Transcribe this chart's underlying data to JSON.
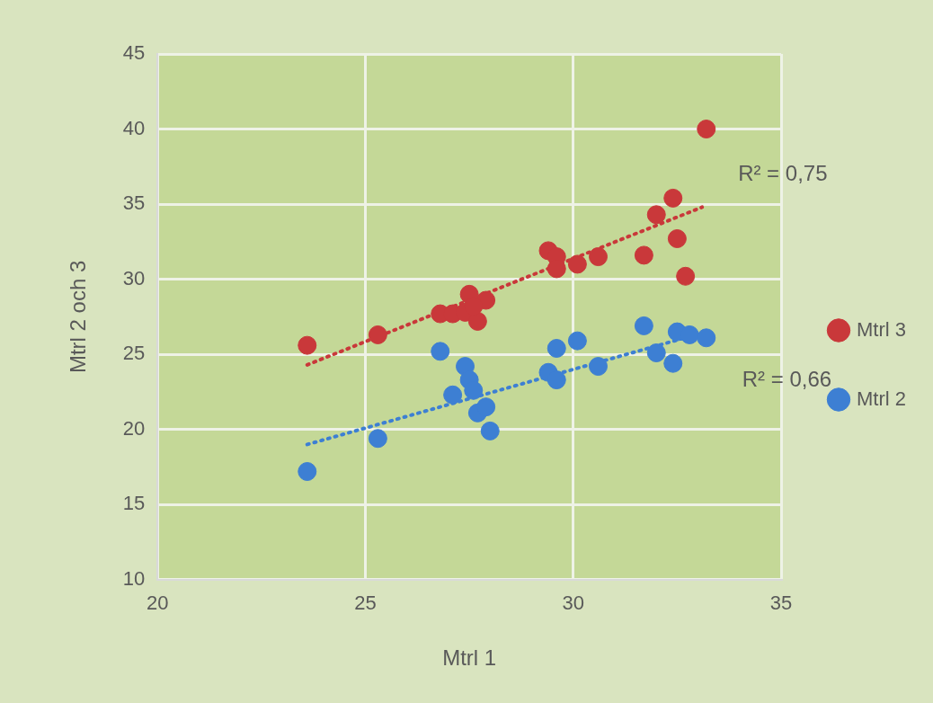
{
  "chart_data": {
    "type": "scatter",
    "xlabel": "Mtrl 1",
    "ylabel": "Mtrl 2 och 3",
    "xlim": [
      20,
      35
    ],
    "xticks": [
      20,
      25,
      30,
      35
    ],
    "ylim": [
      10,
      45
    ],
    "yticks": [
      10,
      15,
      20,
      25,
      30,
      35,
      40,
      45
    ],
    "grid": true,
    "legend": "right",
    "marker": "circle",
    "annotations": [
      "R² = 0,75",
      "R² = 0,66"
    ],
    "series": [
      {
        "name": "Mtrl 3",
        "color": "#c9383a",
        "x": [
          23.6,
          25.3,
          26.8,
          27.1,
          27.5,
          27.4,
          27.7,
          27.9,
          27.6,
          29.4,
          29.6,
          29.6,
          30.1,
          30.6,
          31.7,
          32.0,
          32.4,
          32.5,
          32.7,
          33.2
        ],
        "values": [
          25.6,
          26.3,
          27.7,
          27.7,
          29.0,
          27.8,
          27.2,
          28.6,
          28.2,
          31.9,
          31.5,
          30.7,
          31.0,
          31.5,
          31.6,
          34.3,
          35.4,
          32.7,
          30.2,
          40.0
        ]
      },
      {
        "name": "Mtrl 2",
        "color": "#3d7fd3",
        "x": [
          23.6,
          25.3,
          26.8,
          27.1,
          27.4,
          27.5,
          27.6,
          27.7,
          27.9,
          28.0,
          29.4,
          29.6,
          29.6,
          30.1,
          30.6,
          31.7,
          32.0,
          32.4,
          32.5,
          32.8,
          33.2
        ],
        "values": [
          17.2,
          19.4,
          25.2,
          22.3,
          24.2,
          23.3,
          22.6,
          21.1,
          21.5,
          19.9,
          23.8,
          23.3,
          25.4,
          25.9,
          24.2,
          26.9,
          25.1,
          24.4,
          26.5,
          26.3,
          26.1
        ]
      },
      {
        "type": "line",
        "color": "#c9383a",
        "line_style": "dotted",
        "marker": "none",
        "x": [
          23.6,
          33.1
        ],
        "values": [
          24.3,
          34.8
        ]
      },
      {
        "type": "line",
        "color": "#3d7fd3",
        "line_style": "dotted",
        "marker": "none",
        "x": [
          23.6,
          33.2
        ],
        "values": [
          19.0,
          26.5
        ]
      }
    ]
  }
}
